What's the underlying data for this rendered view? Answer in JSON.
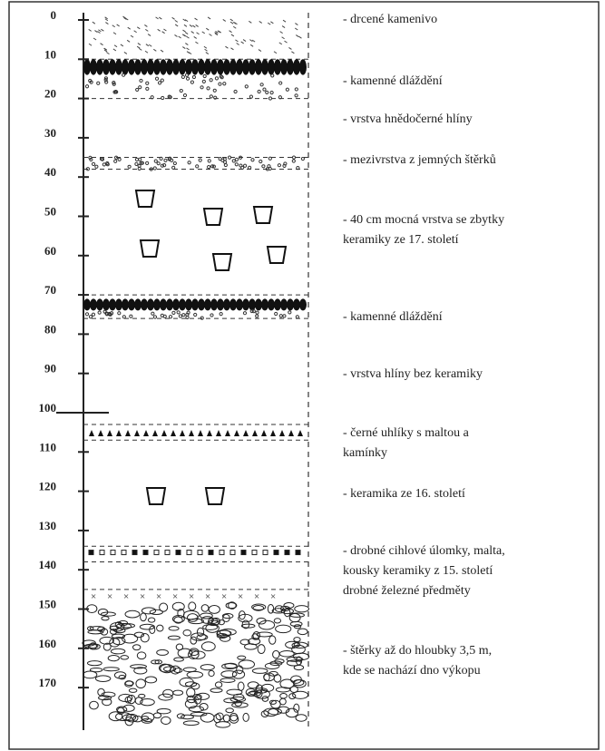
{
  "depths": [
    0,
    10,
    20,
    30,
    40,
    50,
    60,
    70,
    80,
    90,
    100,
    110,
    120,
    130,
    140,
    150,
    160,
    170
  ],
  "layers": [
    {
      "lines": [
        "- drcené kamenivo"
      ]
    },
    {
      "lines": [
        "- kamenné dláždění"
      ]
    },
    {
      "lines": [
        "- vrstva hnědočerné hlíny"
      ]
    },
    {
      "lines": [
        "- mezivrstva z jemných štěrků"
      ]
    },
    {
      "lines": [
        "- 40 cm mocná vrstva se zbytky",
        "keramiky ze 17. století"
      ]
    },
    {
      "lines": [
        "- kamenné dláždění"
      ]
    },
    {
      "lines": [
        "- vrstva hlíny bez keramiky"
      ]
    },
    {
      "lines": [
        "- černé uhlíky s maltou a",
        "kamínky"
      ]
    },
    {
      "lines": [
        "- keramika ze 16. století"
      ]
    },
    {
      "lines": [
        "- drobné cihlové úlomky, malta,",
        "kousky keramiky z 15. století",
        "drobné železné předměty"
      ]
    },
    {
      "lines": [
        "- štěrky až do hloubky 3,5 m,",
        "kde se nachází dno výkopu"
      ]
    }
  ]
}
